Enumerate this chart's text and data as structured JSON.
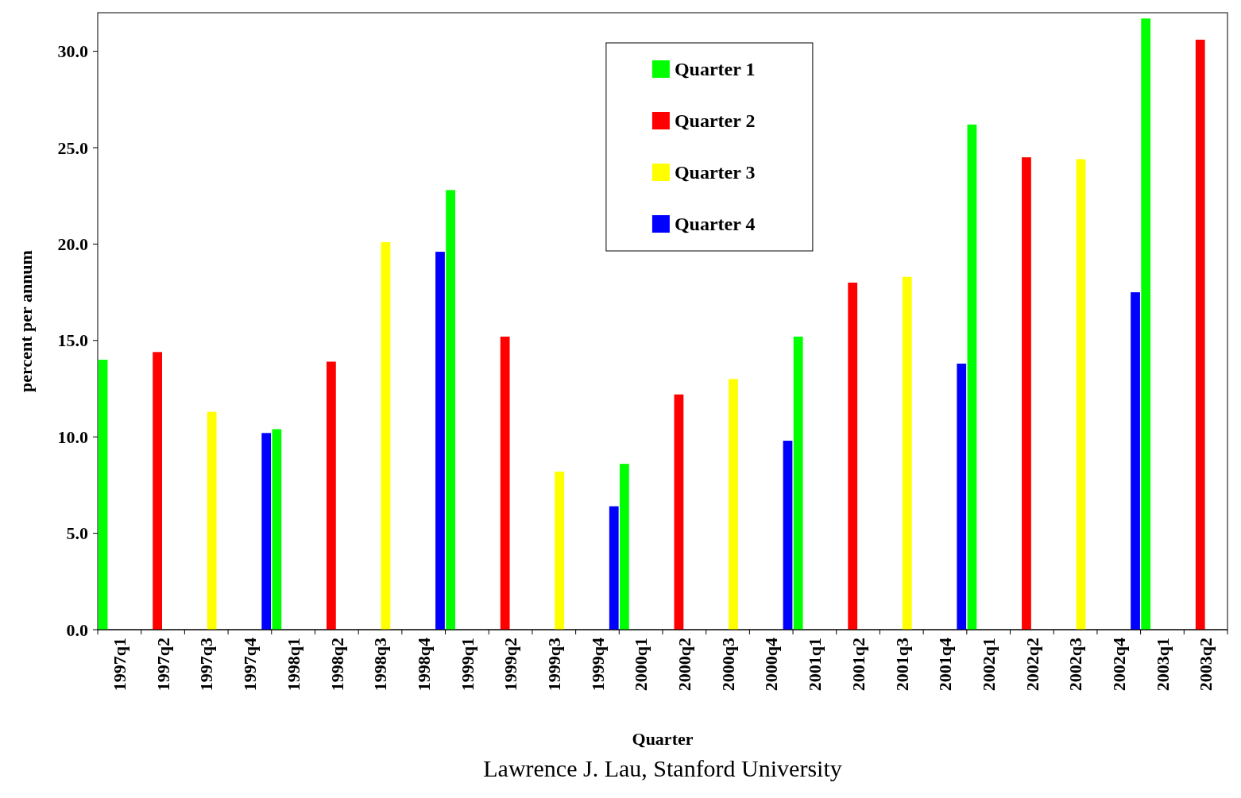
{
  "chart_data": {
    "type": "bar",
    "xlabel": "Quarter",
    "ylabel": "percent per annum",
    "annotations": [
      "Lawrence J. Lau, Stanford University"
    ],
    "categories": [
      "1997q1",
      "1997q2",
      "1997q3",
      "1997q4",
      "1998q1",
      "1998q2",
      "1998q3",
      "1998q4",
      "1999q1",
      "1999q2",
      "1999q3",
      "1999q4",
      "2000q1",
      "2000q2",
      "2000q3",
      "2000q4",
      "2001q1",
      "2001q2",
      "2001q3",
      "2001q4",
      "2002q1",
      "2002q2",
      "2002q3",
      "2002q4",
      "2003q1",
      "2003q2"
    ],
    "series": [
      {
        "name": "Quarter 1",
        "color": "#00ff00",
        "values": [
          14.0,
          null,
          null,
          null,
          10.4,
          null,
          null,
          null,
          22.8,
          null,
          null,
          null,
          8.6,
          null,
          null,
          null,
          15.2,
          null,
          null,
          null,
          26.2,
          null,
          null,
          null,
          31.7,
          null
        ]
      },
      {
        "name": "Quarter 2",
        "color": "#ff0000",
        "values": [
          null,
          14.4,
          null,
          null,
          null,
          13.9,
          null,
          null,
          null,
          15.2,
          null,
          null,
          null,
          12.2,
          null,
          null,
          null,
          18.0,
          null,
          null,
          null,
          24.5,
          null,
          null,
          null,
          30.6
        ]
      },
      {
        "name": "Quarter 3",
        "color": "#ffff00",
        "values": [
          null,
          null,
          11.3,
          null,
          null,
          null,
          20.1,
          null,
          null,
          null,
          8.2,
          null,
          null,
          null,
          13.0,
          null,
          null,
          null,
          18.3,
          null,
          null,
          null,
          24.4,
          null,
          null,
          null
        ]
      },
      {
        "name": "Quarter 4",
        "color": "#0000ff",
        "values": [
          null,
          null,
          null,
          10.2,
          null,
          null,
          null,
          19.6,
          null,
          null,
          null,
          6.4,
          null,
          null,
          null,
          9.8,
          null,
          null,
          null,
          13.8,
          null,
          null,
          null,
          17.5,
          null,
          null
        ]
      }
    ],
    "ylim": [
      0,
      32
    ],
    "yticks": [
      {
        "value": 0,
        "label": "0.0"
      },
      {
        "value": 5,
        "label": "5.0"
      },
      {
        "value": 10,
        "label": "10.0"
      },
      {
        "value": 15,
        "label": "15.0"
      },
      {
        "value": 20,
        "label": "20.0"
      },
      {
        "value": 25,
        "label": "25.0"
      },
      {
        "value": 30,
        "label": "30.0"
      }
    ],
    "legend": "top",
    "grid": false
  }
}
